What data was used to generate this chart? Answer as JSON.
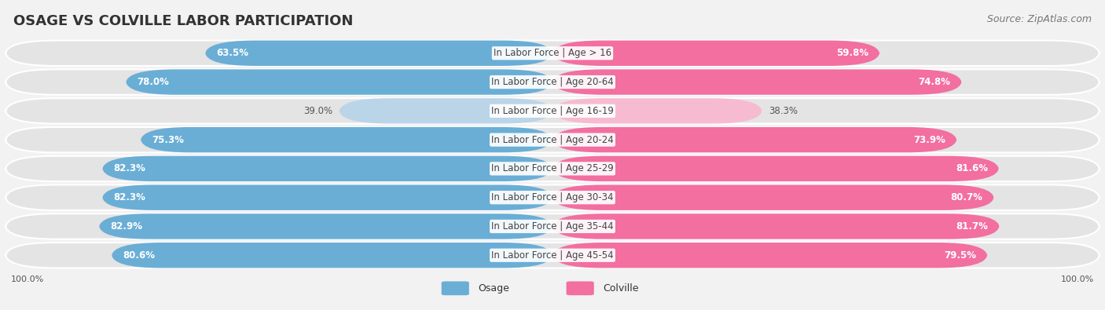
{
  "title": "OSAGE VS COLVILLE LABOR PARTICIPATION",
  "source": "Source: ZipAtlas.com",
  "categories": [
    "In Labor Force | Age > 16",
    "In Labor Force | Age 20-64",
    "In Labor Force | Age 16-19",
    "In Labor Force | Age 20-24",
    "In Labor Force | Age 25-29",
    "In Labor Force | Age 30-34",
    "In Labor Force | Age 35-44",
    "In Labor Force | Age 45-54"
  ],
  "osage_values": [
    63.5,
    78.0,
    39.0,
    75.3,
    82.3,
    82.3,
    82.9,
    80.6
  ],
  "colville_values": [
    59.8,
    74.8,
    38.3,
    73.9,
    81.6,
    80.7,
    81.7,
    79.5
  ],
  "osage_color": "#6aaed6",
  "osage_light_color": "#bbd5e8",
  "colville_color": "#f26fa0",
  "colville_light_color": "#f7bbd1",
  "background_color": "#f2f2f2",
  "row_bg_color": "#e4e4e4",
  "row_border_color": "#ffffff",
  "max_value": 100.0,
  "legend_osage": "Osage",
  "legend_colville": "Colville",
  "title_fontsize": 13,
  "source_fontsize": 9,
  "label_fontsize": 8.5,
  "value_fontsize": 8.5,
  "legend_fontsize": 9,
  "axis_fontsize": 8
}
